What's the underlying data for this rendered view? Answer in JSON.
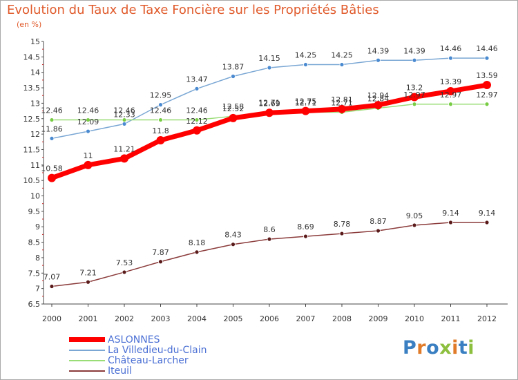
{
  "title": "Evolution du Taux de Taxe Foncière sur les Propriétés Bâties",
  "subtitle": "(en %)",
  "logo": {
    "text": "Proxiti",
    "colors": [
      "#3a7fc1",
      "#e07b2a",
      "#3a7fc1",
      "#8dbf3f",
      "#e07b2a",
      "#3a7fc1",
      "#8dbf3f"
    ]
  },
  "chart_data": {
    "type": "line",
    "x": [
      2000,
      2001,
      2002,
      2003,
      2004,
      2005,
      2006,
      2007,
      2008,
      2009,
      2010,
      2011,
      2012
    ],
    "ylim": [
      6.5,
      15
    ],
    "yticks": [
      6.5,
      7,
      7.5,
      8,
      8.5,
      9,
      9.5,
      10,
      10.5,
      11,
      11.5,
      12,
      12.5,
      13,
      13.5,
      14,
      14.5,
      15
    ],
    "grid": false,
    "legend_position": "bottom-left",
    "series": [
      {
        "name": "ASLONNES",
        "color": "#ff0000",
        "line_width": 7,
        "marker_radius": 6,
        "marker_fill": "#ff0000",
        "values": [
          10.58,
          11,
          11.21,
          11.8,
          12.12,
          12.52,
          12.69,
          12.75,
          12.81,
          12.94,
          13.2,
          13.39,
          13.59
        ]
      },
      {
        "name": "La Villedieu-du-Clain",
        "color": "#7aa7d4",
        "line_width": 1.5,
        "marker_radius": 3,
        "marker_fill": "#4a8ad0",
        "values": [
          11.86,
          12.09,
          12.33,
          12.95,
          13.47,
          13.87,
          14.15,
          14.25,
          14.25,
          14.39,
          14.39,
          14.46,
          14.46
        ]
      },
      {
        "name": "Château-Larcher",
        "color": "#99dd77",
        "line_width": 1.5,
        "marker_radius": 3,
        "marker_fill": "#77cc44",
        "values": [
          12.46,
          12.46,
          12.46,
          12.46,
          12.46,
          12.58,
          12.71,
          12.71,
          12.71,
          12.84,
          12.97,
          12.97,
          12.97
        ]
      },
      {
        "name": "Iteuil",
        "color": "#8b3a3a",
        "line_width": 1.5,
        "marker_radius": 3,
        "marker_fill": "#5a1a1a",
        "values": [
          7.07,
          7.21,
          7.53,
          7.87,
          8.18,
          8.43,
          8.6,
          8.69,
          8.78,
          8.87,
          9.05,
          9.14,
          9.14
        ]
      }
    ]
  }
}
